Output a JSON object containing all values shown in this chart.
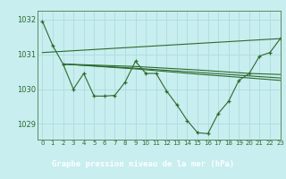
{
  "title": "Graphe pression niveau de la mer (hPa)",
  "background_color": "#c8eef0",
  "label_bg_color": "#3a7a3a",
  "grid_color": "#aadddd",
  "line_color": "#2d6a2d",
  "spine_color": "#5a8a5a",
  "xlim": [
    -0.5,
    23
  ],
  "ylim": [
    1028.55,
    1032.25
  ],
  "yticks": [
    1029,
    1030,
    1031,
    1032
  ],
  "xticks": [
    0,
    1,
    2,
    3,
    4,
    5,
    6,
    7,
    8,
    9,
    10,
    11,
    12,
    13,
    14,
    15,
    16,
    17,
    18,
    19,
    20,
    21,
    22,
    23
  ],
  "series_main": {
    "x": [
      0,
      1,
      2,
      3,
      4,
      5,
      6,
      7,
      8,
      9,
      10,
      11,
      12,
      13,
      14,
      15,
      16,
      17,
      18,
      19,
      20,
      21,
      22,
      23
    ],
    "y": [
      1031.95,
      1031.25,
      1030.72,
      1030.0,
      1030.45,
      1029.8,
      1029.8,
      1029.82,
      1030.2,
      1030.8,
      1030.45,
      1030.45,
      1029.95,
      1029.55,
      1029.1,
      1028.75,
      1028.72,
      1029.3,
      1029.65,
      1030.25,
      1030.45,
      1030.95,
      1031.05,
      1031.45
    ]
  },
  "series_trend1": {
    "x": [
      0,
      23
    ],
    "y": [
      1031.05,
      1031.45
    ]
  },
  "series_trend2": {
    "x": [
      2,
      9,
      15,
      20,
      23
    ],
    "y": [
      1030.72,
      1030.65,
      1030.55,
      1030.45,
      1030.42
    ]
  },
  "series_trend3": {
    "x": [
      2,
      9,
      15,
      20,
      23
    ],
    "y": [
      1030.72,
      1030.6,
      1030.48,
      1030.38,
      1030.32
    ]
  },
  "series_trend4": {
    "x": [
      2,
      9,
      15,
      20,
      23
    ],
    "y": [
      1030.72,
      1030.58,
      1030.43,
      1030.32,
      1030.25
    ]
  }
}
